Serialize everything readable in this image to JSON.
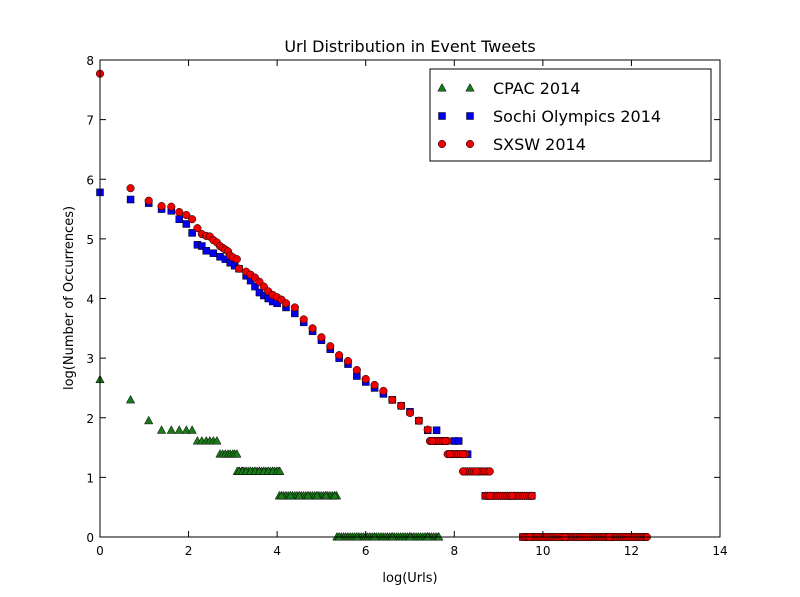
{
  "chart_data": {
    "type": "scatter",
    "title": "Url Distribution in Event Tweets",
    "xlabel": "log(Urls)",
    "ylabel": "log(Number of Occurrences)",
    "xlim": [
      0,
      14
    ],
    "ylim": [
      0,
      8
    ],
    "xticks": [
      0,
      2,
      4,
      6,
      8,
      10,
      12,
      14
    ],
    "yticks": [
      0,
      1,
      2,
      3,
      4,
      5,
      6,
      7,
      8
    ],
    "grid": false,
    "legend_position": "top-right",
    "series": [
      {
        "name": "CPAC 2014",
        "marker": "triangle",
        "color": "#1a7a1a",
        "points": [
          [
            0.0,
            2.64
          ],
          [
            0.69,
            2.3
          ],
          [
            1.1,
            1.95
          ],
          [
            1.39,
            1.79
          ],
          [
            1.61,
            1.79
          ],
          [
            1.79,
            1.79
          ],
          [
            1.95,
            1.79
          ],
          [
            2.08,
            1.79
          ],
          [
            2.2,
            1.61
          ],
          [
            2.3,
            1.61
          ],
          [
            2.4,
            1.61
          ],
          [
            2.48,
            1.61
          ],
          [
            2.56,
            1.61
          ],
          [
            2.64,
            1.61
          ],
          [
            2.71,
            1.39
          ],
          [
            2.77,
            1.39
          ],
          [
            2.83,
            1.39
          ],
          [
            2.89,
            1.39
          ],
          [
            2.94,
            1.39
          ],
          [
            3.0,
            1.39
          ],
          [
            3.04,
            1.39
          ],
          [
            3.09,
            1.39
          ],
          [
            3.14,
            1.1
          ],
          [
            3.22,
            1.1
          ],
          [
            3.3,
            1.1
          ],
          [
            3.4,
            1.1
          ],
          [
            3.5,
            1.1
          ],
          [
            3.6,
            1.1
          ],
          [
            3.7,
            1.1
          ],
          [
            3.8,
            1.1
          ],
          [
            3.9,
            1.1
          ],
          [
            4.0,
            1.1
          ],
          [
            4.06,
            1.1
          ],
          [
            4.1,
            0.69
          ],
          [
            4.3,
            0.69
          ],
          [
            4.5,
            0.69
          ],
          [
            4.7,
            0.69
          ],
          [
            4.9,
            0.69
          ],
          [
            5.1,
            0.69
          ],
          [
            5.3,
            0.69
          ],
          [
            5.4,
            0.0
          ],
          [
            5.8,
            0.0
          ],
          [
            6.2,
            0.0
          ],
          [
            6.6,
            0.0
          ],
          [
            7.0,
            0.0
          ],
          [
            7.4,
            0.0
          ],
          [
            7.65,
            0.0
          ]
        ]
      },
      {
        "name": "Sochi Olympics 2014",
        "marker": "square",
        "color": "#0000ee",
        "points": [
          [
            0.0,
            5.78
          ],
          [
            0.69,
            5.66
          ],
          [
            1.1,
            5.6
          ],
          [
            1.39,
            5.5
          ],
          [
            1.61,
            5.47
          ],
          [
            1.79,
            5.33
          ],
          [
            1.95,
            5.25
          ],
          [
            2.08,
            5.1
          ],
          [
            2.2,
            4.9
          ],
          [
            2.3,
            4.88
          ],
          [
            2.4,
            4.8
          ],
          [
            2.56,
            4.76
          ],
          [
            2.71,
            4.7
          ],
          [
            2.83,
            4.66
          ],
          [
            2.94,
            4.6
          ],
          [
            3.04,
            4.55
          ],
          [
            3.14,
            4.5
          ],
          [
            3.3,
            4.38
          ],
          [
            3.4,
            4.3
          ],
          [
            3.5,
            4.2
          ],
          [
            3.6,
            4.1
          ],
          [
            3.7,
            4.05
          ],
          [
            3.8,
            4.0
          ],
          [
            3.9,
            3.95
          ],
          [
            4.0,
            3.92
          ],
          [
            4.2,
            3.85
          ],
          [
            4.4,
            3.75
          ],
          [
            4.6,
            3.6
          ],
          [
            4.8,
            3.45
          ],
          [
            5.0,
            3.3
          ],
          [
            5.2,
            3.15
          ],
          [
            5.4,
            3.0
          ],
          [
            5.6,
            2.9
          ],
          [
            5.8,
            2.7
          ],
          [
            6.0,
            2.6
          ],
          [
            6.2,
            2.5
          ],
          [
            6.4,
            2.4
          ],
          [
            6.6,
            2.3
          ],
          [
            6.8,
            2.2
          ],
          [
            7.0,
            2.1
          ],
          [
            7.2,
            1.95
          ],
          [
            7.4,
            1.79
          ],
          [
            7.6,
            1.79
          ],
          [
            7.7,
            1.61
          ],
          [
            8.0,
            1.61
          ],
          [
            8.1,
            1.61
          ],
          [
            8.0,
            1.39
          ],
          [
            8.3,
            1.39
          ],
          [
            8.3,
            1.1
          ],
          [
            8.6,
            1.1
          ],
          [
            8.7,
            0.69
          ],
          [
            9.2,
            0.69
          ],
          [
            9.75,
            0.69
          ],
          [
            9.55,
            0.0
          ],
          [
            10.5,
            0.0
          ],
          [
            11.5,
            0.0
          ],
          [
            12.3,
            0.0
          ]
        ]
      },
      {
        "name": "SXSW 2014",
        "marker": "circle",
        "color": "#ee0000",
        "points": [
          [
            0.0,
            7.77
          ],
          [
            0.69,
            5.85
          ],
          [
            1.1,
            5.64
          ],
          [
            1.39,
            5.55
          ],
          [
            1.61,
            5.54
          ],
          [
            1.79,
            5.45
          ],
          [
            1.95,
            5.4
          ],
          [
            2.08,
            5.33
          ],
          [
            2.2,
            5.18
          ],
          [
            2.3,
            5.08
          ],
          [
            2.4,
            5.05
          ],
          [
            2.48,
            5.04
          ],
          [
            2.56,
            4.98
          ],
          [
            2.64,
            4.94
          ],
          [
            2.71,
            4.88
          ],
          [
            2.77,
            4.85
          ],
          [
            2.83,
            4.82
          ],
          [
            2.89,
            4.79
          ],
          [
            2.94,
            4.72
          ],
          [
            3.0,
            4.69
          ],
          [
            3.09,
            4.66
          ],
          [
            3.14,
            4.5
          ],
          [
            3.3,
            4.45
          ],
          [
            3.4,
            4.4
          ],
          [
            3.5,
            4.35
          ],
          [
            3.6,
            4.28
          ],
          [
            3.7,
            4.2
          ],
          [
            3.8,
            4.12
          ],
          [
            3.9,
            4.06
          ],
          [
            4.0,
            4.02
          ],
          [
            4.1,
            3.98
          ],
          [
            4.2,
            3.92
          ],
          [
            4.4,
            3.85
          ],
          [
            4.6,
            3.65
          ],
          [
            4.8,
            3.5
          ],
          [
            5.0,
            3.35
          ],
          [
            5.2,
            3.2
          ],
          [
            5.4,
            3.05
          ],
          [
            5.6,
            2.95
          ],
          [
            5.8,
            2.8
          ],
          [
            6.0,
            2.65
          ],
          [
            6.2,
            2.55
          ],
          [
            6.4,
            2.45
          ],
          [
            6.6,
            2.3
          ],
          [
            6.8,
            2.2
          ],
          [
            7.0,
            2.08
          ],
          [
            7.2,
            1.95
          ],
          [
            7.4,
            1.8
          ],
          [
            7.5,
            1.61
          ],
          [
            7.8,
            1.61
          ],
          [
            7.9,
            1.39
          ],
          [
            8.2,
            1.39
          ],
          [
            8.2,
            1.1
          ],
          [
            8.5,
            1.1
          ],
          [
            8.8,
            1.1
          ],
          [
            8.8,
            0.69
          ],
          [
            9.3,
            0.69
          ],
          [
            9.75,
            0.69
          ],
          [
            9.7,
            0.0
          ],
          [
            10.5,
            0.0
          ],
          [
            11.5,
            0.0
          ],
          [
            12.35,
            0.0
          ]
        ]
      }
    ],
    "dense_runs": [
      {
        "series": "CPAC 2014",
        "y": 1.1,
        "x": [
          3.1,
          4.05
        ]
      },
      {
        "series": "CPAC 2014",
        "y": 0.69,
        "x": [
          4.05,
          5.35
        ]
      },
      {
        "series": "CPAC 2014",
        "y": 0.0,
        "x": [
          5.35,
          7.65
        ]
      },
      {
        "series": "SXSW 2014",
        "y": 1.61,
        "x": [
          7.45,
          7.85
        ]
      },
      {
        "series": "SXSW 2014",
        "y": 1.39,
        "x": [
          7.85,
          8.25
        ]
      },
      {
        "series": "SXSW 2014",
        "y": 1.1,
        "x": [
          8.2,
          8.8
        ]
      },
      {
        "series": "SXSW 2014",
        "y": 0.69,
        "x": [
          8.7,
          9.75
        ]
      },
      {
        "series": "SXSW 2014",
        "y": 0.0,
        "x": [
          9.55,
          12.35
        ]
      }
    ]
  }
}
